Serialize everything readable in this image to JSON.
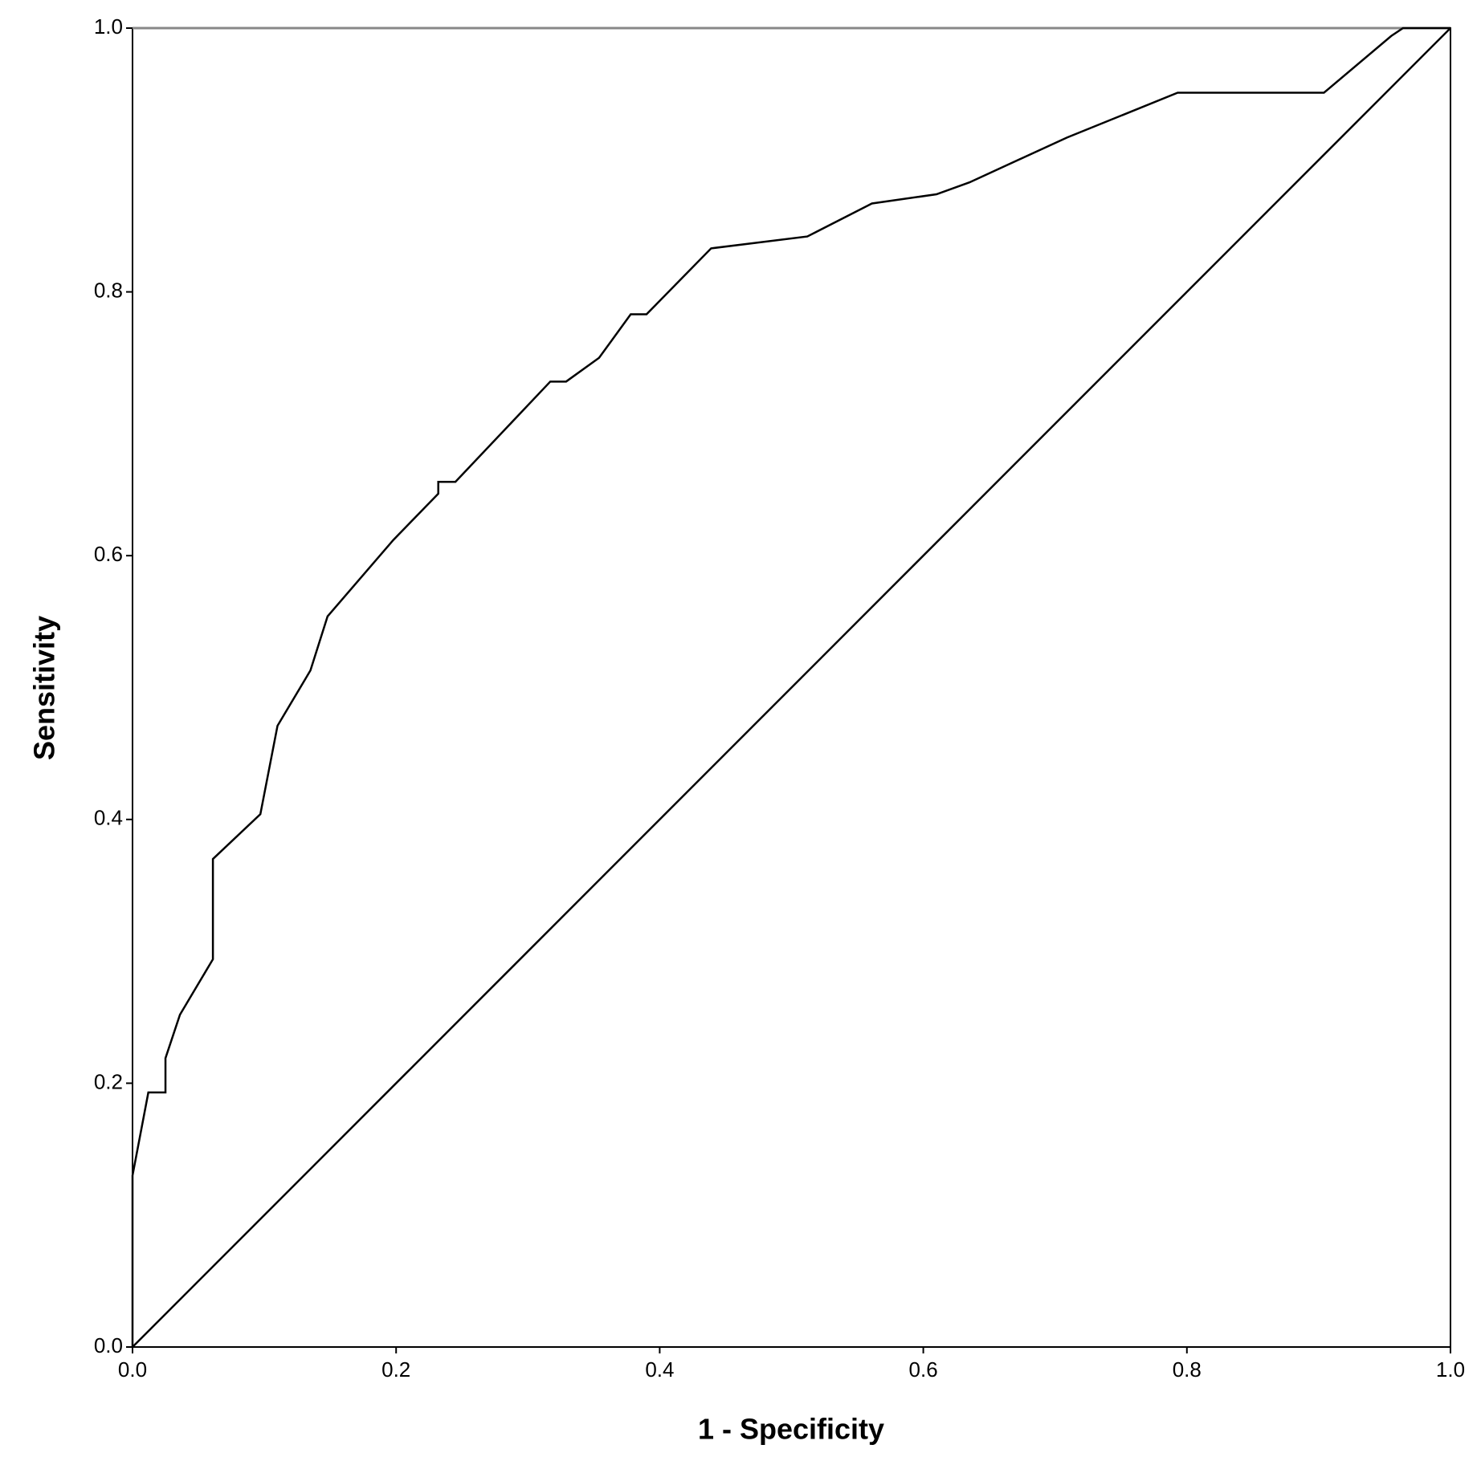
{
  "chart_data": {
    "type": "line",
    "xlabel": "1 - Specificity",
    "ylabel": "Sensitivity",
    "xlim": [
      0,
      1
    ],
    "ylim": [
      0,
      1
    ],
    "xticks": [
      {
        "value": 0,
        "label": "0.0"
      },
      0.2,
      0.4,
      0.6,
      0.8,
      {
        "value": 1,
        "label": "1.0"
      }
    ],
    "yticks": [
      {
        "value": 0,
        "label": "0.0"
      },
      0.2,
      0.4,
      0.6,
      0.8,
      {
        "value": 1,
        "label": "1.0"
      }
    ],
    "series": [
      {
        "color": "#000000",
        "x": [
          0,
          0,
          0.012,
          0.025,
          0.025,
          0.036,
          0.061,
          0.061,
          0.097,
          0.11,
          0.135,
          0.148,
          0.198,
          0.232,
          0.232,
          0.245,
          0.317,
          0.329,
          0.354,
          0.378,
          0.39,
          0.439,
          0.512,
          0.561,
          0.61,
          0.635,
          0.709,
          0.793,
          0.904,
          0.955,
          0.964,
          1.0
        ],
        "values": [
          0,
          0.13,
          0.193,
          0.193,
          0.219,
          0.252,
          0.294,
          0.37,
          0.404,
          0.471,
          0.513,
          0.554,
          0.612,
          0.647,
          0.656,
          0.656,
          0.732,
          0.732,
          0.75,
          0.783,
          0.783,
          0.833,
          0.842,
          0.867,
          0.874,
          0.883,
          0.917,
          0.951,
          0.951,
          0.994,
          1.0,
          1.0
        ]
      },
      {
        "color": "#000000",
        "x": [
          0,
          1
        ],
        "values": [
          0,
          1
        ]
      }
    ]
  }
}
